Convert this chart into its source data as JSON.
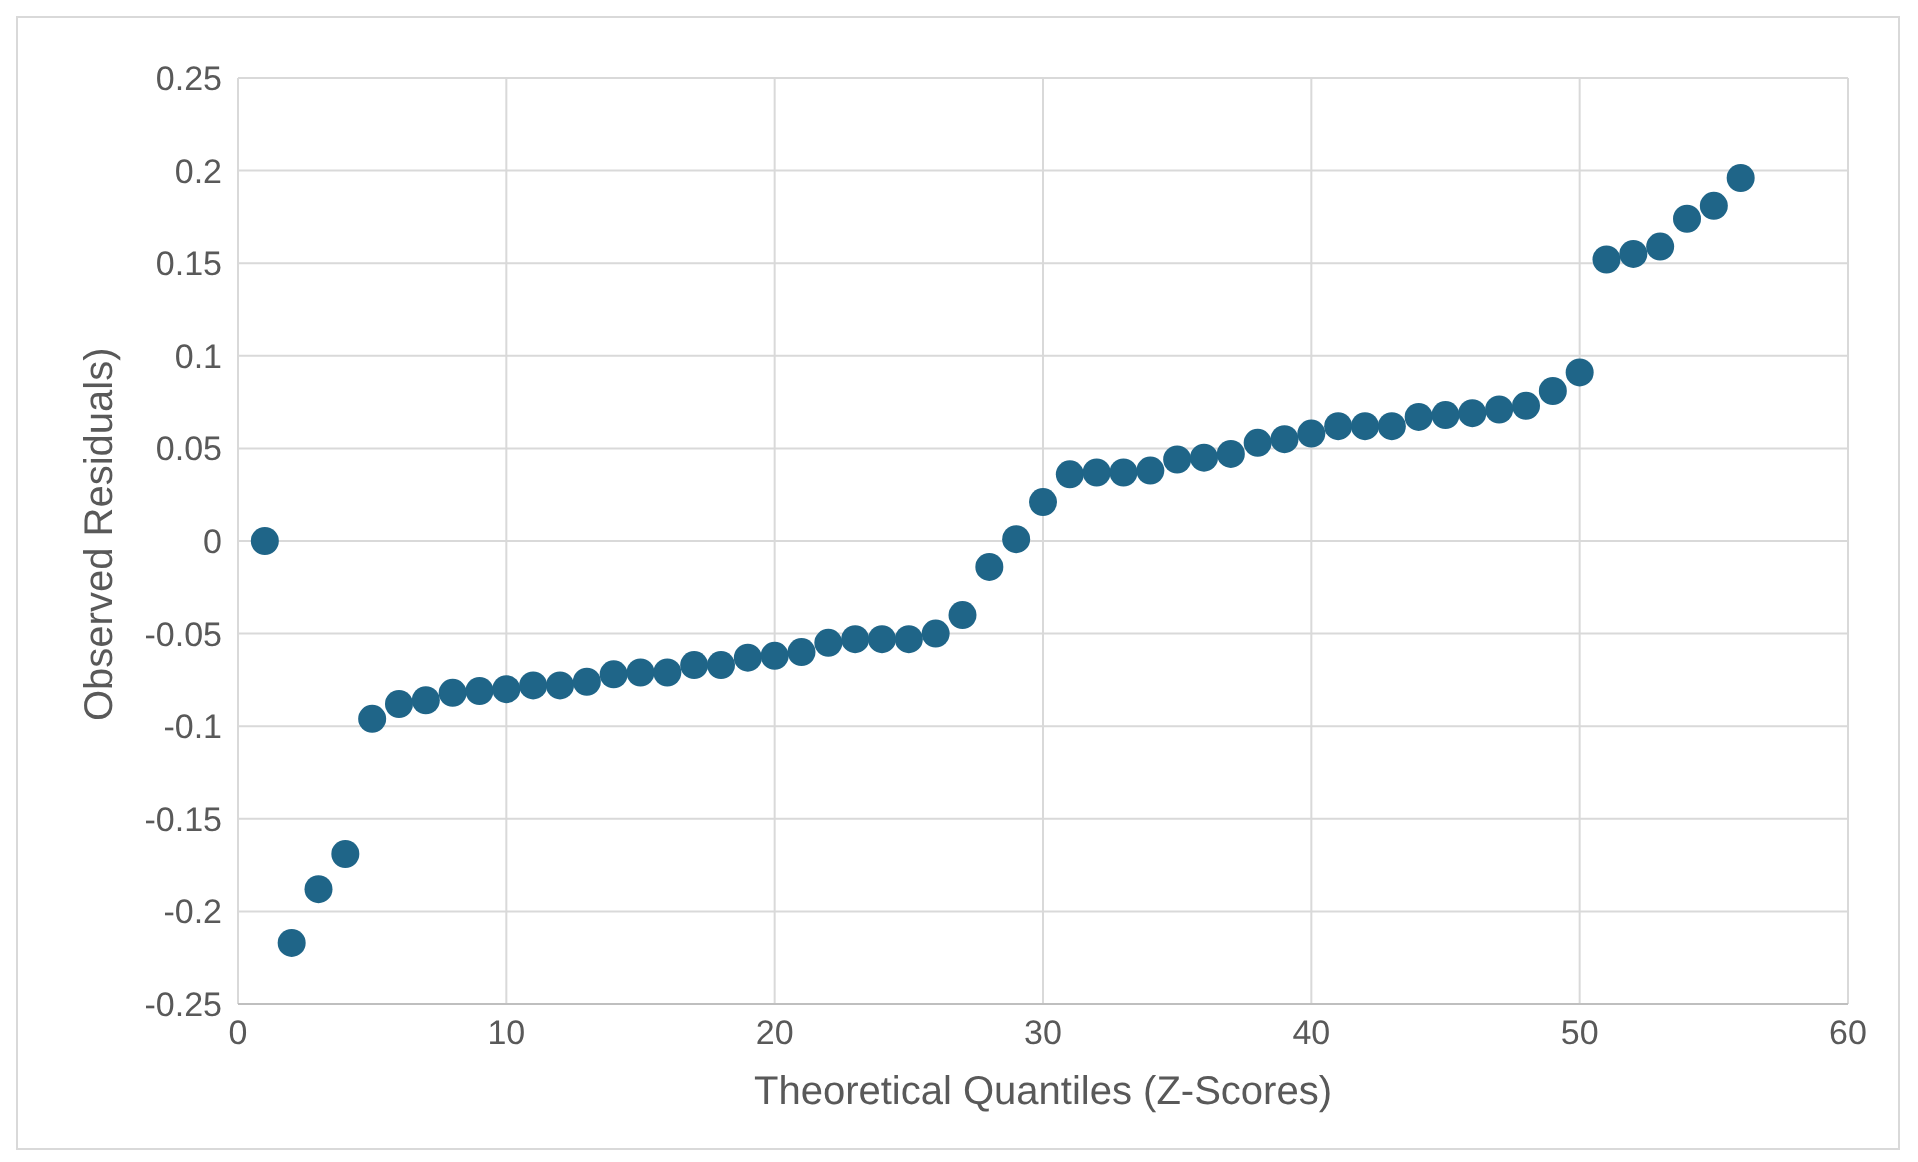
{
  "chart_data": {
    "type": "scatter",
    "xlabel": "Theoretical Quantiles (Z-Scores)",
    "ylabel": "Observed Residuals)",
    "x": [
      1,
      2,
      3,
      4,
      5,
      6,
      7,
      8,
      9,
      10,
      11,
      12,
      13,
      14,
      15,
      16,
      17,
      18,
      19,
      20,
      21,
      22,
      23,
      24,
      25,
      26,
      27,
      28,
      29,
      30,
      31,
      32,
      33,
      34,
      35,
      36,
      37,
      38,
      39,
      40,
      41,
      42,
      43,
      44,
      45,
      46,
      47,
      48,
      49,
      50,
      51,
      52,
      53,
      54,
      55,
      56
    ],
    "series": [
      {
        "color": "#1f6588",
        "values": [
          0,
          -0.217,
          -0.188,
          -0.169,
          -0.096,
          -0.088,
          -0.086,
          -0.082,
          -0.081,
          -0.08,
          -0.078,
          -0.078,
          -0.076,
          -0.072,
          -0.071,
          -0.071,
          -0.067,
          -0.067,
          -0.063,
          -0.062,
          -0.06,
          -0.055,
          -0.053,
          -0.053,
          -0.053,
          -0.05,
          -0.04,
          -0.014,
          0.001,
          0.021,
          0.036,
          0.037,
          0.037,
          0.038,
          0.044,
          0.045,
          0.047,
          0.053,
          0.055,
          0.058,
          0.062,
          0.062,
          0.062,
          0.067,
          0.068,
          0.069,
          0.071,
          0.073,
          0.081,
          0.091,
          0.152,
          0.155,
          0.159,
          0.174,
          0.181,
          0.196
        ]
      }
    ],
    "xlim": [
      0,
      60
    ],
    "xticks": [
      0,
      10,
      20,
      30,
      40,
      50,
      60
    ],
    "ylim": [
      -0.25,
      0.25
    ],
    "yticks": [
      -0.25,
      -0.2,
      -0.15,
      -0.1,
      -0.05,
      0,
      0.05,
      0.1,
      0.15,
      0.2,
      0.25
    ],
    "grid": true,
    "marker": "circle",
    "legend": false
  }
}
